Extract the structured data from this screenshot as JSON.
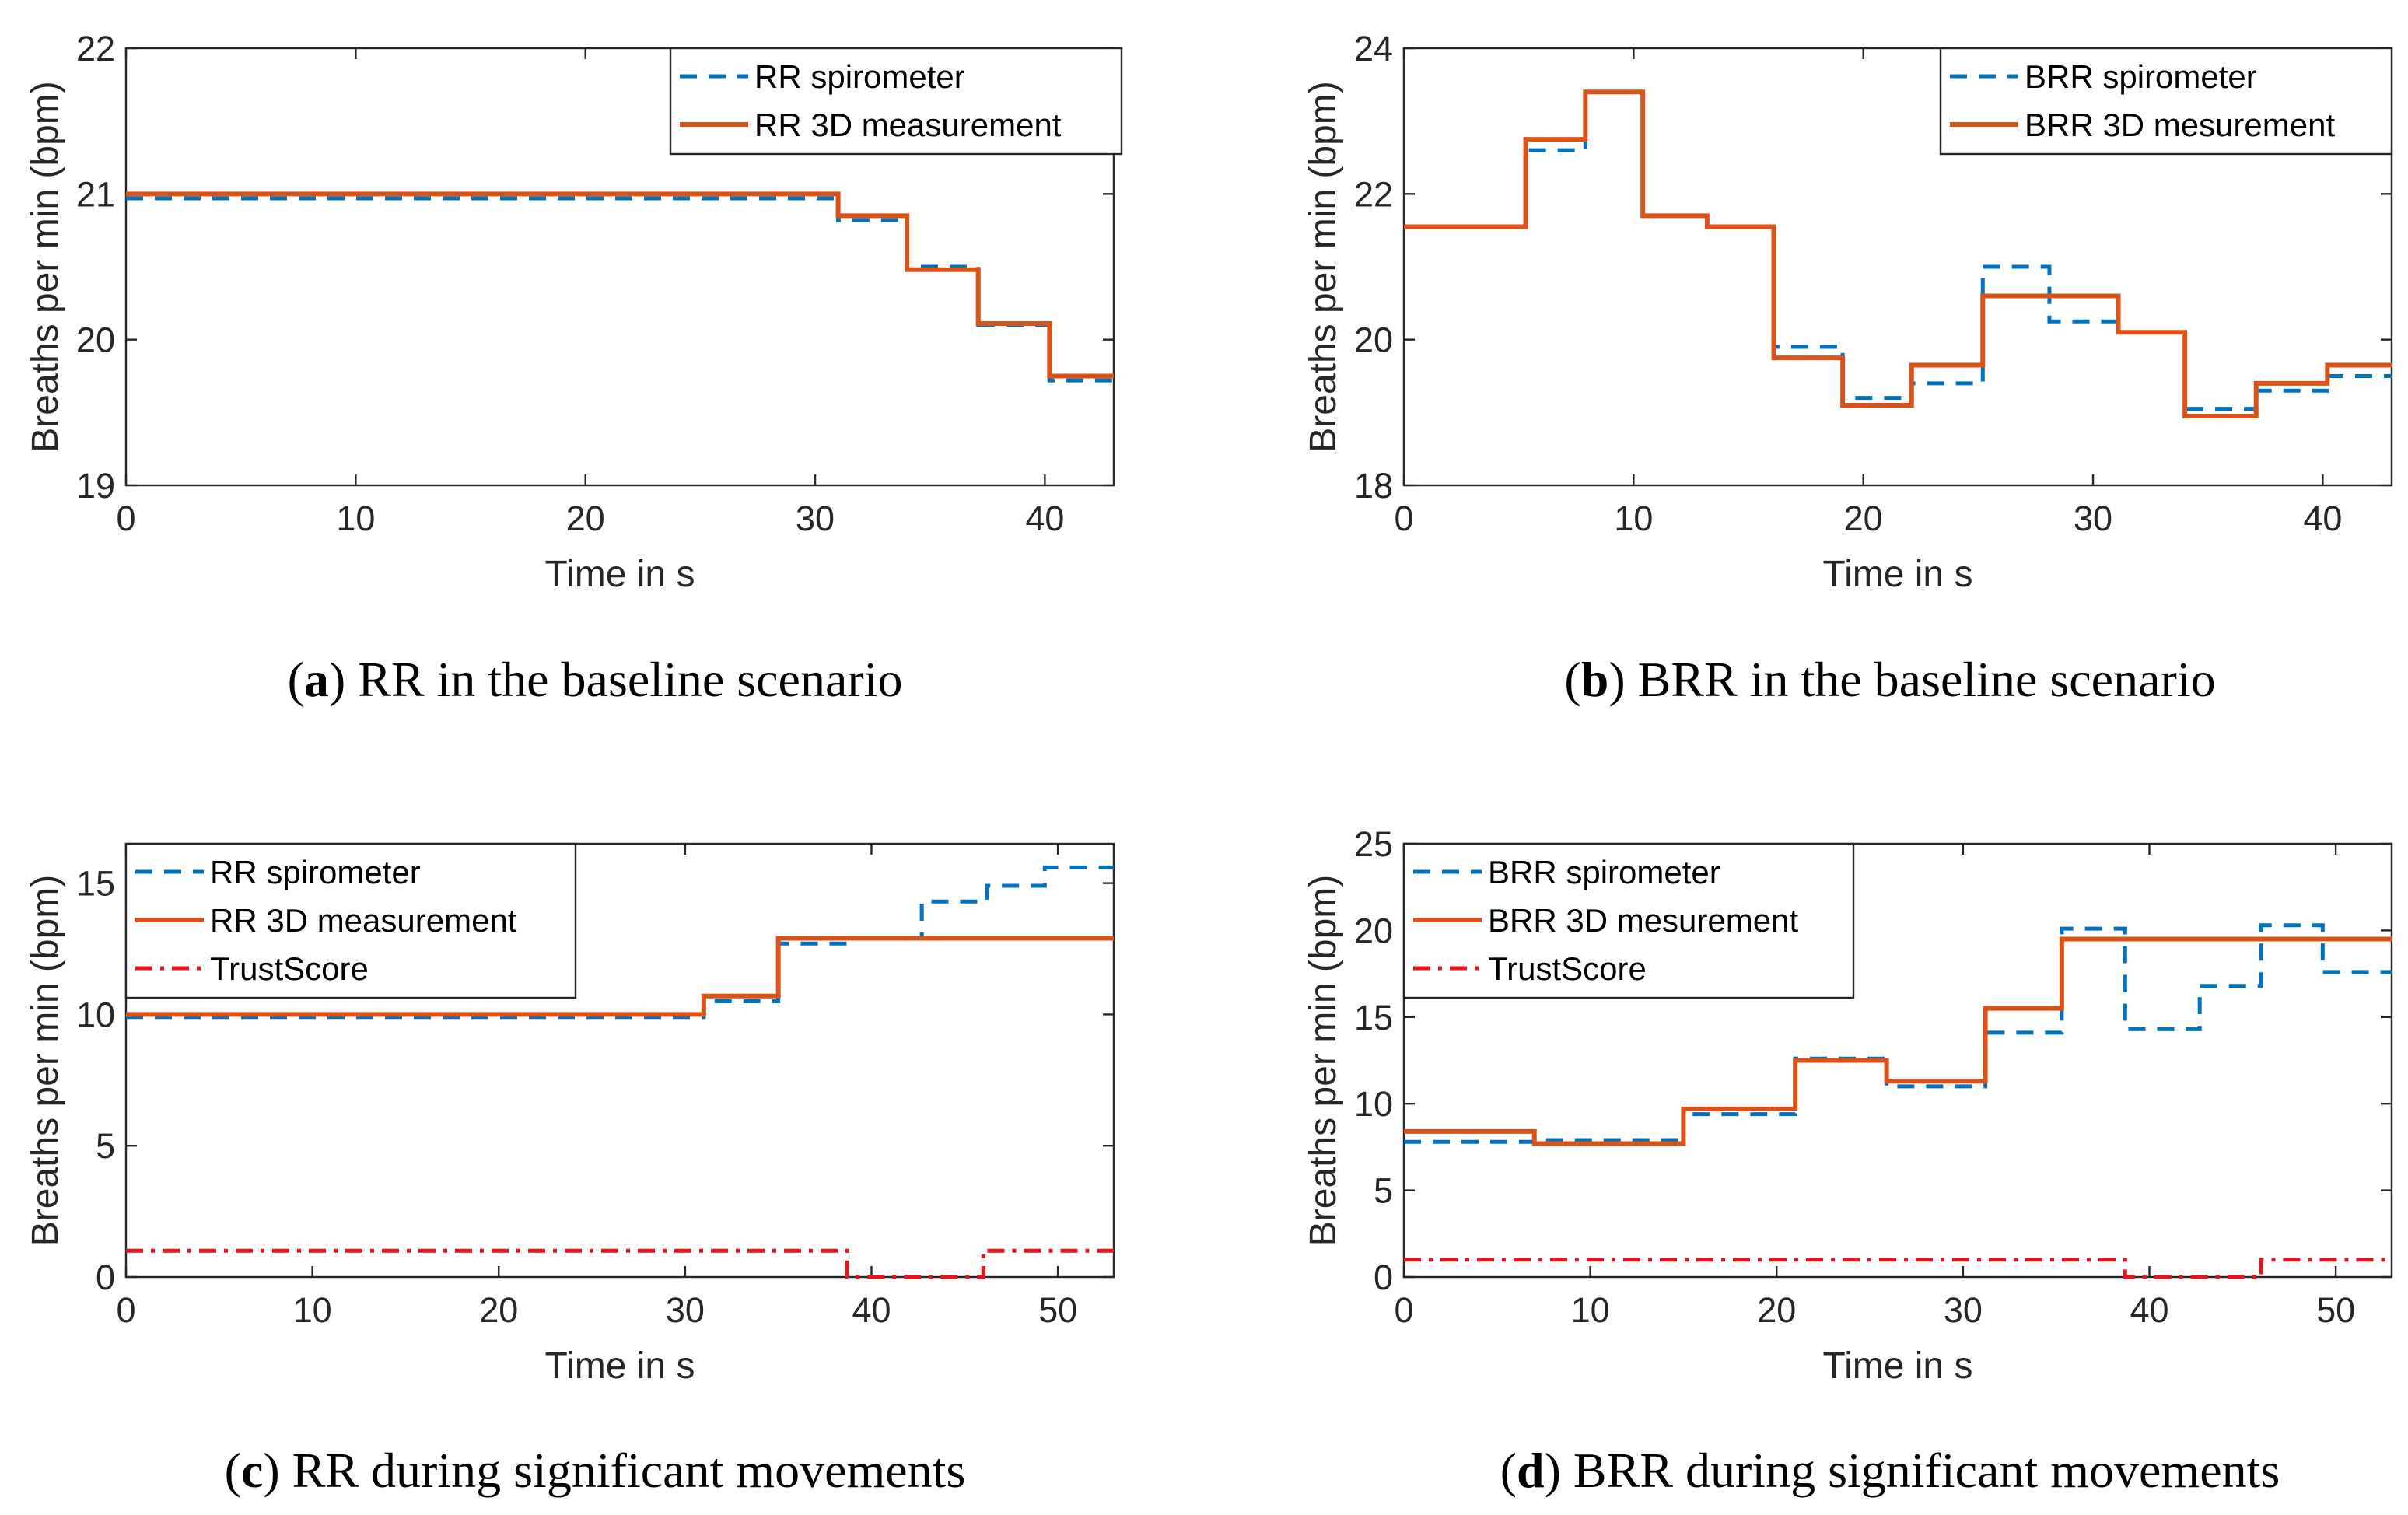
{
  "colors": {
    "spirometer": "#0072BD",
    "measurement": "#D95319",
    "trust": "#E6141E"
  },
  "chart_data": [
    {
      "id": "a",
      "type": "line",
      "caption": {
        "letter": "a",
        "text": "RR in the baseline scenario"
      },
      "xlabel": "Time in s",
      "ylabel": "Breaths per min (bpm)",
      "xlim": [
        0,
        43
      ],
      "ylim": [
        19,
        22
      ],
      "xticks": [
        0,
        10,
        20,
        30,
        40
      ],
      "yticks": [
        19,
        20,
        21,
        22
      ],
      "legend_position": "top-right",
      "series": [
        {
          "name": "RR spirometer",
          "style": "dashed",
          "color_key": "spirometer",
          "steps": [
            [
              0,
              20.97
            ],
            [
              31,
              20.82
            ],
            [
              34,
              20.5
            ],
            [
              37.1,
              20.1
            ],
            [
              40.2,
              19.72
            ],
            [
              43,
              19.72
            ]
          ]
        },
        {
          "name": "RR 3D measurement",
          "style": "solid",
          "color_key": "measurement",
          "steps": [
            [
              0,
              21.0
            ],
            [
              31,
              20.85
            ],
            [
              34,
              20.48
            ],
            [
              37.1,
              20.11
            ],
            [
              40.2,
              19.75
            ],
            [
              43,
              19.75
            ]
          ]
        }
      ]
    },
    {
      "id": "b",
      "type": "line",
      "caption": {
        "letter": "b",
        "text": "BRR in the baseline scenario"
      },
      "xlabel": "Time in s",
      "ylabel": "Breaths per min (bpm)",
      "xlim": [
        0,
        43
      ],
      "ylim": [
        18,
        24
      ],
      "xticks": [
        0,
        10,
        20,
        30,
        40
      ],
      "yticks": [
        18,
        20,
        22,
        24
      ],
      "legend_position": "top-right",
      "series": [
        {
          "name": "BRR spirometer",
          "style": "dashed",
          "color_key": "spirometer",
          "steps": [
            [
              0,
              21.55
            ],
            [
              5.3,
              22.6
            ],
            [
              7.9,
              23.4
            ],
            [
              10.4,
              21.7
            ],
            [
              13.2,
              21.55
            ],
            [
              16.1,
              19.9
            ],
            [
              19.1,
              19.2
            ],
            [
              22.1,
              19.4
            ],
            [
              25.2,
              21.0
            ],
            [
              28.1,
              20.25
            ],
            [
              31.1,
              20.1
            ],
            [
              34.0,
              19.05
            ],
            [
              37.1,
              19.3
            ],
            [
              40.2,
              19.5
            ],
            [
              43,
              19.5
            ]
          ]
        },
        {
          "name": "BRR 3D mesurement",
          "style": "solid",
          "color_key": "measurement",
          "steps": [
            [
              0,
              21.55
            ],
            [
              5.3,
              22.75
            ],
            [
              7.9,
              23.4
            ],
            [
              10.4,
              21.7
            ],
            [
              13.2,
              21.55
            ],
            [
              16.1,
              19.75
            ],
            [
              19.1,
              19.1
            ],
            [
              22.1,
              19.65
            ],
            [
              25.2,
              20.6
            ],
            [
              31.1,
              20.1
            ],
            [
              34.0,
              18.95
            ],
            [
              37.1,
              19.4
            ],
            [
              40.2,
              19.65
            ],
            [
              43,
              19.65
            ]
          ]
        }
      ]
    },
    {
      "id": "c",
      "type": "line",
      "caption": {
        "letter": "c",
        "text": "RR during significant movements"
      },
      "xlabel": "Time in s",
      "ylabel": "Breaths per min (bpm)",
      "xlim": [
        0,
        53
      ],
      "ylim": [
        0,
        16.5
      ],
      "xticks": [
        0,
        10,
        20,
        30,
        40,
        50
      ],
      "yticks": [
        0,
        5,
        10,
        15
      ],
      "legend_position": "top-left",
      "series": [
        {
          "name": "RR spirometer",
          "style": "dashed",
          "color_key": "spirometer",
          "steps": [
            [
              0,
              9.9
            ],
            [
              31,
              10.5
            ],
            [
              35,
              12.7
            ],
            [
              39,
              12.9
            ],
            [
              42.7,
              14.3
            ],
            [
              46.2,
              14.9
            ],
            [
              49.3,
              15.6
            ],
            [
              53,
              15.6
            ]
          ]
        },
        {
          "name": "RR 3D measurement",
          "style": "solid",
          "color_key": "measurement",
          "steps": [
            [
              0,
              10.0
            ],
            [
              31,
              10.7
            ],
            [
              35,
              12.9
            ],
            [
              53,
              12.9
            ]
          ]
        },
        {
          "name": "TrustScore",
          "style": "dashdot",
          "color_key": "trust",
          "steps": [
            [
              0,
              1.0
            ],
            [
              38.7,
              0.0
            ],
            [
              46,
              1.0
            ],
            [
              53,
              1.0
            ]
          ]
        }
      ]
    },
    {
      "id": "d",
      "type": "line",
      "caption": {
        "letter": "d",
        "text": "BRR during significant movements"
      },
      "xlabel": "Time in s",
      "ylabel": "Breaths per min (bpm)",
      "xlim": [
        0,
        53
      ],
      "ylim": [
        0,
        25
      ],
      "xticks": [
        0,
        10,
        20,
        30,
        40,
        50
      ],
      "yticks": [
        0,
        5,
        10,
        15,
        20,
        25
      ],
      "legend_position": "top-left",
      "series": [
        {
          "name": "BRR spirometer",
          "style": "dashed",
          "color_key": "spirometer",
          "steps": [
            [
              0,
              7.8
            ],
            [
              7,
              7.9
            ],
            [
              15,
              9.4
            ],
            [
              21,
              12.6
            ],
            [
              25.9,
              11.0
            ],
            [
              31.2,
              14.1
            ],
            [
              35.3,
              20.1
            ],
            [
              38.7,
              14.3
            ],
            [
              42.7,
              16.8
            ],
            [
              46,
              20.3
            ],
            [
              49.3,
              17.6
            ],
            [
              53,
              17.6
            ]
          ]
        },
        {
          "name": "BRR 3D mesurement",
          "style": "solid",
          "color_key": "measurement",
          "steps": [
            [
              0,
              8.4
            ],
            [
              7,
              7.7
            ],
            [
              15,
              9.7
            ],
            [
              21,
              12.5
            ],
            [
              25.9,
              11.3
            ],
            [
              31.2,
              15.5
            ],
            [
              35.3,
              19.5
            ],
            [
              53,
              19.5
            ]
          ]
        },
        {
          "name": "TrustScore",
          "style": "dashdot",
          "color_key": "trust",
          "steps": [
            [
              0,
              1.0
            ],
            [
              38.7,
              0.0
            ],
            [
              46,
              1.0
            ],
            [
              53,
              1.0
            ]
          ]
        }
      ]
    }
  ]
}
